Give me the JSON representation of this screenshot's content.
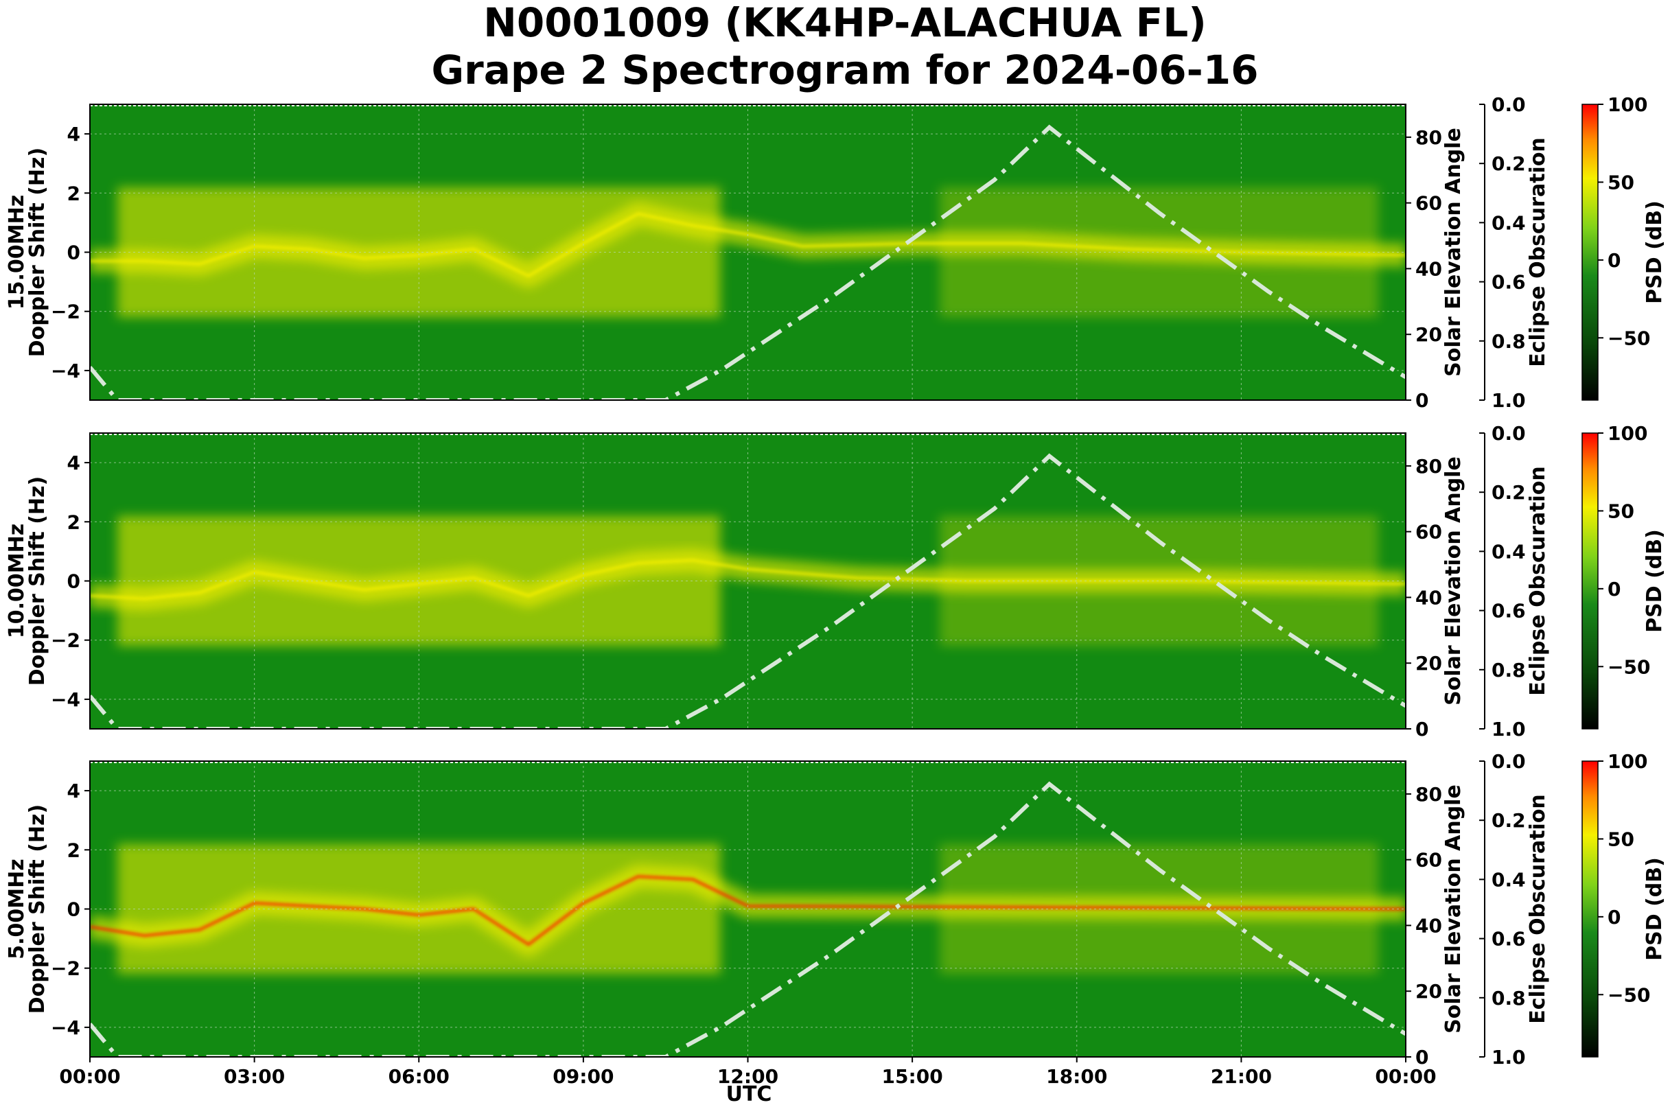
{
  "title": {
    "line1": "N0001009 (KK4HP-ALACHUA FL)",
    "line2": "Grape 2 Spectrogram for 2024-06-16"
  },
  "colors": {
    "background_green": "#128a12",
    "yellow": "#f5f000",
    "red": "#ff1a00",
    "solar_curve": "#d8e8d8",
    "colorbar": [
      "#000000",
      "#0a4a0a",
      "#1a8a1a",
      "#7fd21a",
      "#f5f000",
      "#ff8c00",
      "#ff0000"
    ]
  },
  "x_axis": {
    "label": "UTC",
    "tick_labels": [
      "00:00",
      "03:00",
      "06:00",
      "09:00",
      "12:00",
      "15:00",
      "18:00",
      "21:00",
      "00:00"
    ],
    "tick_hours": [
      0,
      3,
      6,
      9,
      12,
      15,
      18,
      21,
      24
    ]
  },
  "secondary_axes": {
    "solar_label": "Solar Elevation Angle",
    "solar_ticks": [
      "0",
      "20",
      "40",
      "60",
      "80"
    ],
    "eclipse_label": "Eclipse Obscuration",
    "eclipse_ticks": [
      "0.0",
      "0.2",
      "0.4",
      "0.6",
      "0.8",
      "1.0"
    ],
    "colorbar_label": "PSD (dB)",
    "colorbar_ticks": [
      "100",
      "50",
      "0",
      "−50"
    ]
  },
  "chart_data": {
    "type": "heatmap",
    "xlabel": "UTC",
    "xlim": [
      0,
      24
    ],
    "ylim": [
      -5,
      5
    ],
    "y_ticks": [
      "4",
      "2",
      "0",
      "−2",
      "−4"
    ],
    "solar_ylim": [
      0,
      90
    ],
    "eclipse_ylim": [
      1.0,
      0.0
    ],
    "psd_range": [
      -90,
      100
    ],
    "panels": [
      {
        "frequency": "15.00MHz",
        "ylabel": "Doppler Shift (Hz)",
        "carrier_trace": [
          [
            0,
            -0.3
          ],
          [
            1,
            -0.3
          ],
          [
            2,
            -0.4
          ],
          [
            3,
            0.2
          ],
          [
            4,
            0.1
          ],
          [
            5,
            -0.2
          ],
          [
            6,
            -0.1
          ],
          [
            7,
            0.1
          ],
          [
            8,
            -0.8
          ],
          [
            9,
            0.3
          ],
          [
            10,
            1.3
          ],
          [
            11,
            0.9
          ],
          [
            12,
            0.6
          ],
          [
            13,
            0.2
          ],
          [
            15,
            0.3
          ],
          [
            17,
            0.3
          ],
          [
            19,
            0.1
          ],
          [
            21,
            0.0
          ],
          [
            24,
            -0.1
          ]
        ]
      },
      {
        "frequency": "10.00MHz",
        "ylabel": "Doppler Shift (Hz)",
        "carrier_trace": [
          [
            0,
            -0.5
          ],
          [
            1,
            -0.6
          ],
          [
            2,
            -0.4
          ],
          [
            3,
            0.3
          ],
          [
            4,
            0.0
          ],
          [
            5,
            -0.3
          ],
          [
            6,
            -0.1
          ],
          [
            7,
            0.1
          ],
          [
            8,
            -0.5
          ],
          [
            9,
            0.2
          ],
          [
            10,
            0.6
          ],
          [
            11,
            0.7
          ],
          [
            12,
            0.4
          ],
          [
            14,
            0.1
          ],
          [
            16,
            0.0
          ],
          [
            20,
            0.0
          ],
          [
            24,
            -0.1
          ]
        ]
      },
      {
        "frequency": "5.00MHz",
        "ylabel": "Doppler Shift (Hz)",
        "carrier_trace": [
          [
            0,
            -0.6
          ],
          [
            1,
            -0.9
          ],
          [
            2,
            -0.7
          ],
          [
            3,
            0.2
          ],
          [
            4,
            0.1
          ],
          [
            5,
            0.0
          ],
          [
            6,
            -0.2
          ],
          [
            7,
            0.0
          ],
          [
            8,
            -1.2
          ],
          [
            9,
            0.2
          ],
          [
            10,
            1.1
          ],
          [
            11,
            1.0
          ],
          [
            12,
            0.1
          ],
          [
            24,
            0.0
          ]
        ]
      }
    ],
    "solar_elevation": {
      "x": [
        0,
        0.5,
        10.5,
        11.5,
        12.5,
        13.5,
        14.5,
        15.5,
        16.5,
        17.5,
        18.5,
        19.5,
        20.5,
        21.5,
        22.5,
        23.5,
        24
      ],
      "y": [
        10,
        0,
        0,
        9,
        20,
        31,
        43,
        55,
        67,
        83,
        70,
        57,
        45,
        33,
        22,
        12,
        7
      ]
    }
  }
}
